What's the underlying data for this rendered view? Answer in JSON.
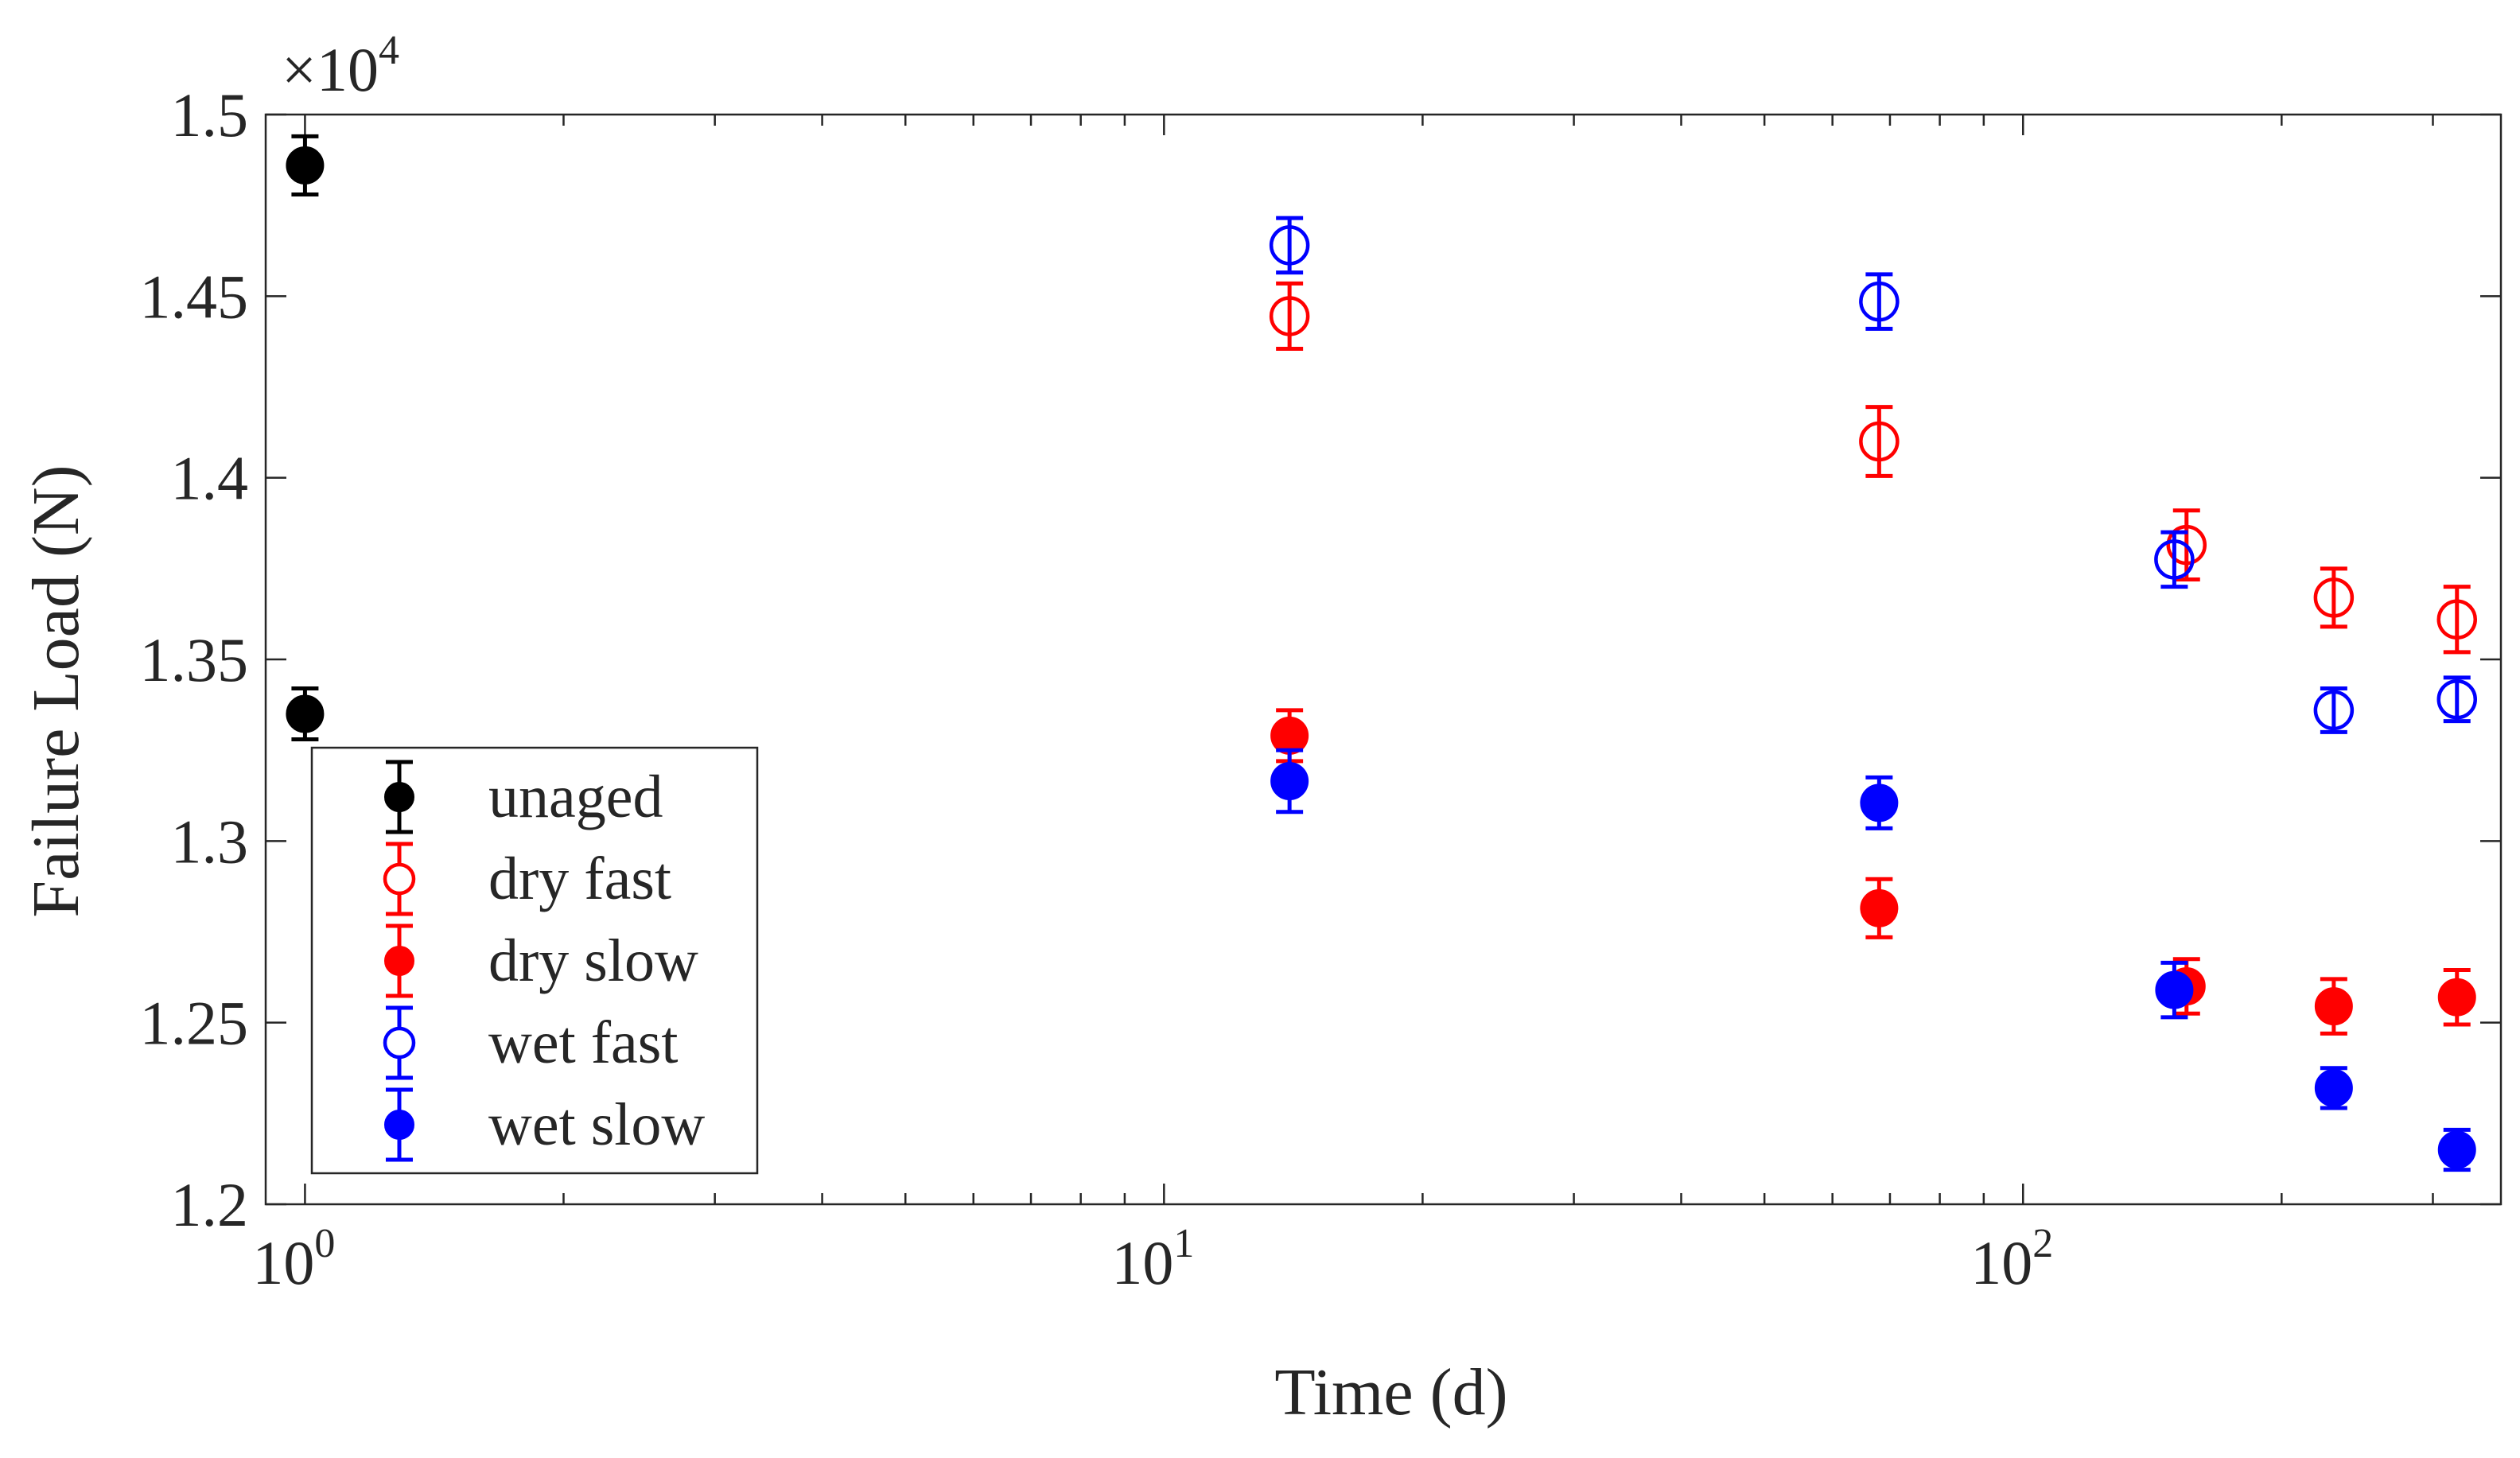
{
  "chart_data": {
    "type": "scatter",
    "title": "",
    "xlabel": "Time (d)",
    "ylabel": "Failure Load (N)",
    "xscale": "log",
    "xlim": [
      0.9,
      360
    ],
    "ylim": [
      12000,
      15000
    ],
    "y_multiplier_label": "×10",
    "y_multiplier_exp": "4",
    "x_ticks": [
      {
        "value": 1,
        "base": "10",
        "exp": "0"
      },
      {
        "value": 10,
        "base": "10",
        "exp": "1"
      },
      {
        "value": 100,
        "base": "10",
        "exp": "2"
      }
    ],
    "y_ticks": [
      {
        "value": 12000,
        "label": "1.2"
      },
      {
        "value": 12500,
        "label": "1.25"
      },
      {
        "value": 13000,
        "label": "1.3"
      },
      {
        "value": 13500,
        "label": "1.35"
      },
      {
        "value": 14000,
        "label": "1.4"
      },
      {
        "value": 14500,
        "label": "1.45"
      },
      {
        "value": 15000,
        "label": "1.5"
      }
    ],
    "legend_position": "bottom-left",
    "series": [
      {
        "name": "unaged",
        "color": "#000000",
        "marker": "filled-circle",
        "x": [
          1,
          1
        ],
        "y": [
          14860,
          13350
        ],
        "err": [
          80,
          70
        ]
      },
      {
        "name": "dry fast",
        "color": "#ff0000",
        "marker": "open-circle",
        "x": [
          14,
          68,
          155,
          230,
          320
        ],
        "y": [
          14445,
          14100,
          13815,
          13670,
          13610
        ],
        "err": [
          90,
          95,
          95,
          80,
          90
        ]
      },
      {
        "name": "dry slow",
        "color": "#ff0000",
        "marker": "filled-circle",
        "x": [
          14,
          68,
          155,
          230,
          320
        ],
        "y": [
          13290,
          12815,
          12600,
          12545,
          12570
        ],
        "err": [
          70,
          80,
          75,
          75,
          75
        ]
      },
      {
        "name": "wet fast",
        "color": "#0000ff",
        "marker": "open-circle",
        "x": [
          14,
          68,
          150,
          230,
          320
        ],
        "y": [
          14640,
          14485,
          13775,
          13360,
          13390
        ],
        "err": [
          75,
          75,
          75,
          60,
          60
        ]
      },
      {
        "name": "wet slow",
        "color": "#0000ff",
        "marker": "filled-circle",
        "x": [
          14,
          68,
          150,
          230,
          320
        ],
        "y": [
          13165,
          13105,
          12590,
          12320,
          12150
        ],
        "err": [
          85,
          70,
          75,
          55,
          55
        ]
      }
    ]
  }
}
